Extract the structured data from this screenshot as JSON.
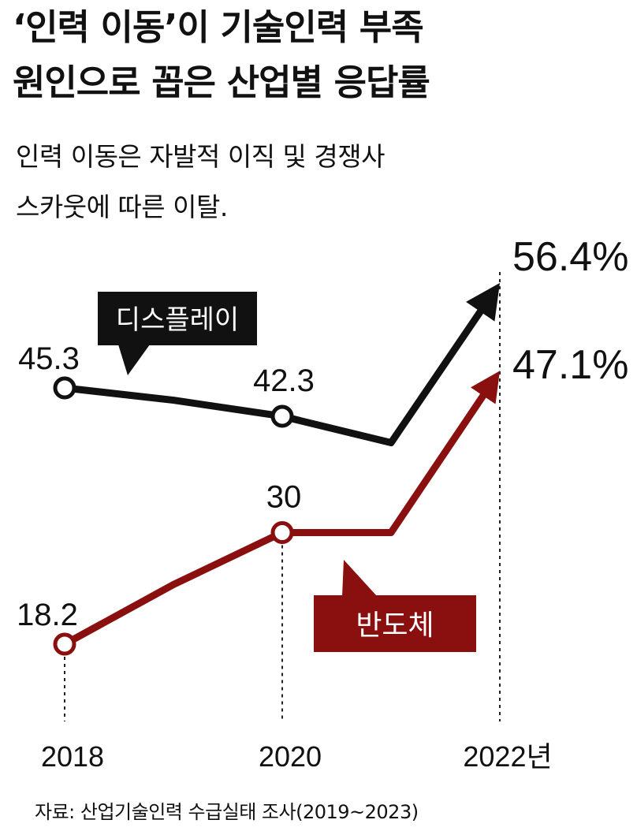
{
  "title_line1": "‘인력 이동’이 기술인력 부족",
  "title_line2": "원인으로 꼽은 산업별 응답률",
  "subtitle_line1": "인력 이동은 자발적 이직 및 경쟁사",
  "subtitle_line2": "스카웃에 따른 이탈.",
  "source": "자료: 산업기술인력 수급실태 조사(2019~2023)",
  "colors": {
    "display": "#111111",
    "semiconductor": "#8a1010",
    "label_text": "#ffffff"
  },
  "chart_data": {
    "type": "line",
    "x_labels": [
      "2018",
      "2020",
      "2022년"
    ],
    "series": [
      {
        "name": "디스플레이",
        "points": [
          {
            "x": 2018,
            "y": 45.3,
            "label": "45.3"
          },
          {
            "x": 2019,
            "y": 44.0
          },
          {
            "x": 2020,
            "y": 42.3,
            "label": "42.3"
          },
          {
            "x": 2021,
            "y": 39.5
          },
          {
            "x": 2022,
            "y": 56.4,
            "label": "56.4%"
          }
        ]
      },
      {
        "name": "반도체",
        "points": [
          {
            "x": 2018,
            "y": 18.2,
            "label": "18.2"
          },
          {
            "x": 2019,
            "y": 24.5
          },
          {
            "x": 2020,
            "y": 30,
            "label": "30"
          },
          {
            "x": 2021,
            "y": 30
          },
          {
            "x": 2022,
            "y": 47.1,
            "label": "47.1%"
          }
        ]
      }
    ]
  }
}
